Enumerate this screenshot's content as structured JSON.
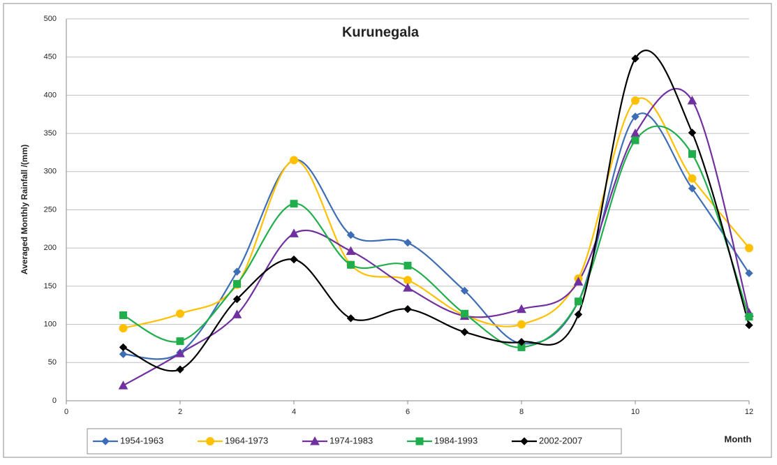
{
  "chart_data": {
    "type": "line",
    "title": "Kurunegala",
    "x_label": "Month",
    "y_label": "Averaged Monthly Rainfall /(mm)",
    "x": [
      1,
      2,
      3,
      4,
      5,
      6,
      7,
      8,
      9,
      10,
      11,
      12
    ],
    "xlim": [
      0,
      12
    ],
    "xticks": [
      0,
      2,
      4,
      6,
      8,
      10,
      12
    ],
    "ylim": [
      0,
      500
    ],
    "yticks": [
      0,
      50,
      100,
      150,
      200,
      250,
      300,
      350,
      400,
      450,
      500
    ],
    "grid": true,
    "smooth": true,
    "legend": "bottom",
    "series": [
      {
        "name": "1954-1963",
        "color": "#3d6db5",
        "marker": "diamond",
        "values": [
          61,
          63,
          169,
          315,
          217,
          207,
          144,
          75,
          130,
          372,
          278,
          167
        ]
      },
      {
        "name": "1964-1973",
        "color": "#ffc000",
        "marker": "circle",
        "values": [
          95,
          114,
          152,
          315,
          178,
          158,
          112,
          100,
          160,
          393,
          291,
          200
        ]
      },
      {
        "name": "1974-1983",
        "color": "#7030a0",
        "marker": "triangle",
        "values": [
          20,
          62,
          113,
          219,
          196,
          148,
          111,
          120,
          156,
          350,
          393,
          115
        ]
      },
      {
        "name": "1984-1993",
        "color": "#1fae4b",
        "marker": "square",
        "values": [
          112,
          78,
          153,
          258,
          178,
          177,
          114,
          70,
          130,
          341,
          323,
          110
        ]
      },
      {
        "name": "2002-2007",
        "color": "#000000",
        "marker": "diamond",
        "values": [
          70,
          41,
          133,
          185,
          108,
          120,
          90,
          77,
          113,
          448,
          351,
          99
        ]
      }
    ]
  }
}
